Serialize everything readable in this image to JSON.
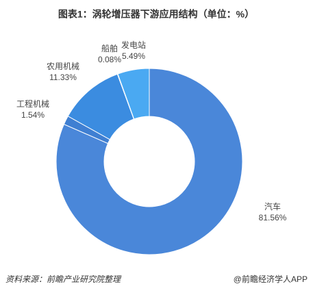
{
  "chart_data": {
    "type": "donut",
    "title": "图表1：涡轮增压器下游应用结构（单位：%）",
    "categories": [
      "汽车",
      "工程机械",
      "农用机械",
      "船舶",
      "发电站"
    ],
    "values": [
      81.56,
      1.54,
      11.33,
      0.08,
      5.49
    ],
    "value_labels": [
      "81.56%",
      "1.54%",
      "11.33%",
      "0.08%",
      "5.49%"
    ],
    "colors": [
      "#4a87d9",
      "#3f7fd2",
      "#3b8ce0",
      "#3f97e6",
      "#4aa9f2"
    ],
    "source": "资料来源：前瞻产业研究院整理",
    "footer": "@前瞻经济学人APP"
  }
}
